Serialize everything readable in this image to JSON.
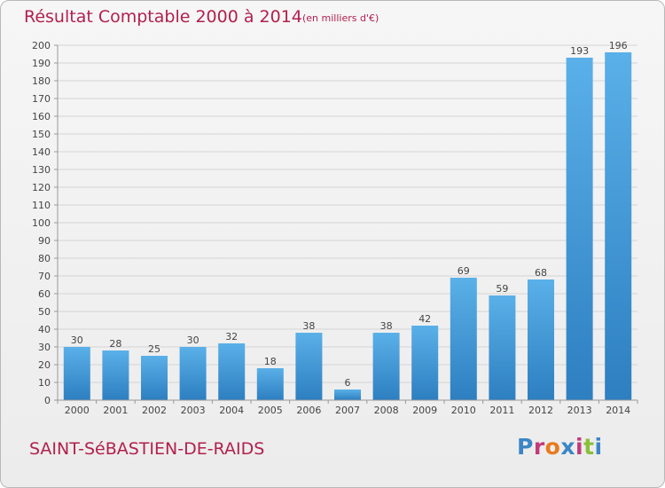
{
  "header": {
    "title": "Résultat Comptable 2000 à 2014",
    "unit": "(en milliers d'€)"
  },
  "footer": {
    "commune": "SAINT-SéBASTIEN-DE-RAIDS",
    "logo_text": "Proxiti",
    "logo_colors": [
      "#3b86c6",
      "#c23a7a",
      "#e87a1e",
      "#3b86c6",
      "#c23a7a",
      "#8bbf3a",
      "#3b86c6"
    ]
  },
  "colors": {
    "title": "#b3204e",
    "bar_light": "#5ab0e8",
    "bar_dark": "#2d7fc0",
    "grid": "#d4d4d4",
    "axis": "#999999"
  },
  "chart_data": {
    "type": "bar",
    "categories": [
      "2000",
      "2001",
      "2002",
      "2003",
      "2004",
      "2005",
      "2006",
      "2007",
      "2008",
      "2009",
      "2010",
      "2011",
      "2012",
      "2013",
      "2014"
    ],
    "values": [
      30,
      28,
      25,
      30,
      32,
      18,
      38,
      6,
      38,
      42,
      69,
      59,
      68,
      193,
      196
    ],
    "title": "Résultat Comptable 2000 à 2014",
    "xlabel": "",
    "ylabel": "",
    "ylim": [
      0,
      200
    ],
    "yticks": [
      0,
      10,
      20,
      30,
      40,
      50,
      60,
      70,
      80,
      90,
      100,
      110,
      120,
      130,
      140,
      150,
      160,
      170,
      180,
      190,
      200
    ],
    "grid": true,
    "legend": "none"
  }
}
